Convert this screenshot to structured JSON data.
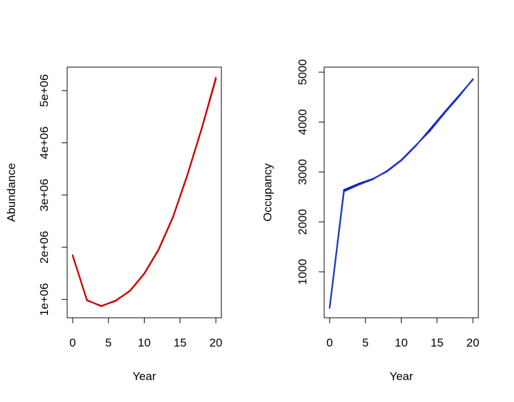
{
  "chart_data": [
    {
      "type": "line",
      "xlabel": "Year",
      "ylabel": "Abundance",
      "xlim": [
        0,
        20
      ],
      "ylim": [
        650000,
        5450000
      ],
      "x_ticks": [
        0,
        5,
        10,
        15,
        20
      ],
      "x_tick_labels": [
        "0",
        "5",
        "10",
        "15",
        "20"
      ],
      "y_ticks": [
        1000000,
        2000000,
        3000000,
        4000000,
        5000000
      ],
      "y_tick_labels": [
        "1e+06",
        "2e+06",
        "3e+06",
        "4e+06",
        "5e+06"
      ],
      "grid": false,
      "series": [
        {
          "color": "#e31a1c",
          "x": [
            0,
            2,
            4,
            6,
            8,
            10,
            12,
            14,
            16,
            18,
            20
          ],
          "y": [
            1850000,
            980000,
            880000,
            970000,
            1170000,
            1500000,
            1960000,
            2580000,
            3380000,
            4270000,
            5250000
          ]
        },
        {
          "color": "#cc0000",
          "x": [
            0,
            2,
            4,
            6,
            8,
            10,
            12,
            14,
            16,
            18,
            20
          ],
          "y": [
            1840000,
            990000,
            870000,
            980000,
            1160000,
            1490000,
            1950000,
            2570000,
            3370000,
            4260000,
            5220000
          ]
        }
      ]
    },
    {
      "type": "line",
      "xlabel": "Year",
      "ylabel": "Occupancy",
      "xlim": [
        0,
        20
      ],
      "ylim": [
        80,
        5100
      ],
      "x_ticks": [
        0,
        5,
        10,
        15,
        20
      ],
      "x_tick_labels": [
        "0",
        "5",
        "10",
        "15",
        "20"
      ],
      "y_ticks": [
        1000,
        2000,
        3000,
        4000,
        5000
      ],
      "y_tick_labels": [
        "1000",
        "2000",
        "3000",
        "4000",
        "5000"
      ],
      "grid": false,
      "series": [
        {
          "color": "#0000cd",
          "x": [
            0,
            2,
            4,
            6,
            8,
            10,
            12,
            14,
            16,
            18,
            20
          ],
          "y": [
            280,
            2640,
            2760,
            2860,
            3010,
            3230,
            3520,
            3850,
            4190,
            4520,
            4850
          ]
        },
        {
          "color": "#1f3fbf",
          "x": [
            0,
            2,
            4,
            6,
            8,
            10,
            12,
            14,
            16,
            18,
            20
          ],
          "y": [
            280,
            2610,
            2740,
            2850,
            3020,
            3240,
            3530,
            3820,
            4170,
            4500,
            4860
          ]
        }
      ]
    }
  ]
}
